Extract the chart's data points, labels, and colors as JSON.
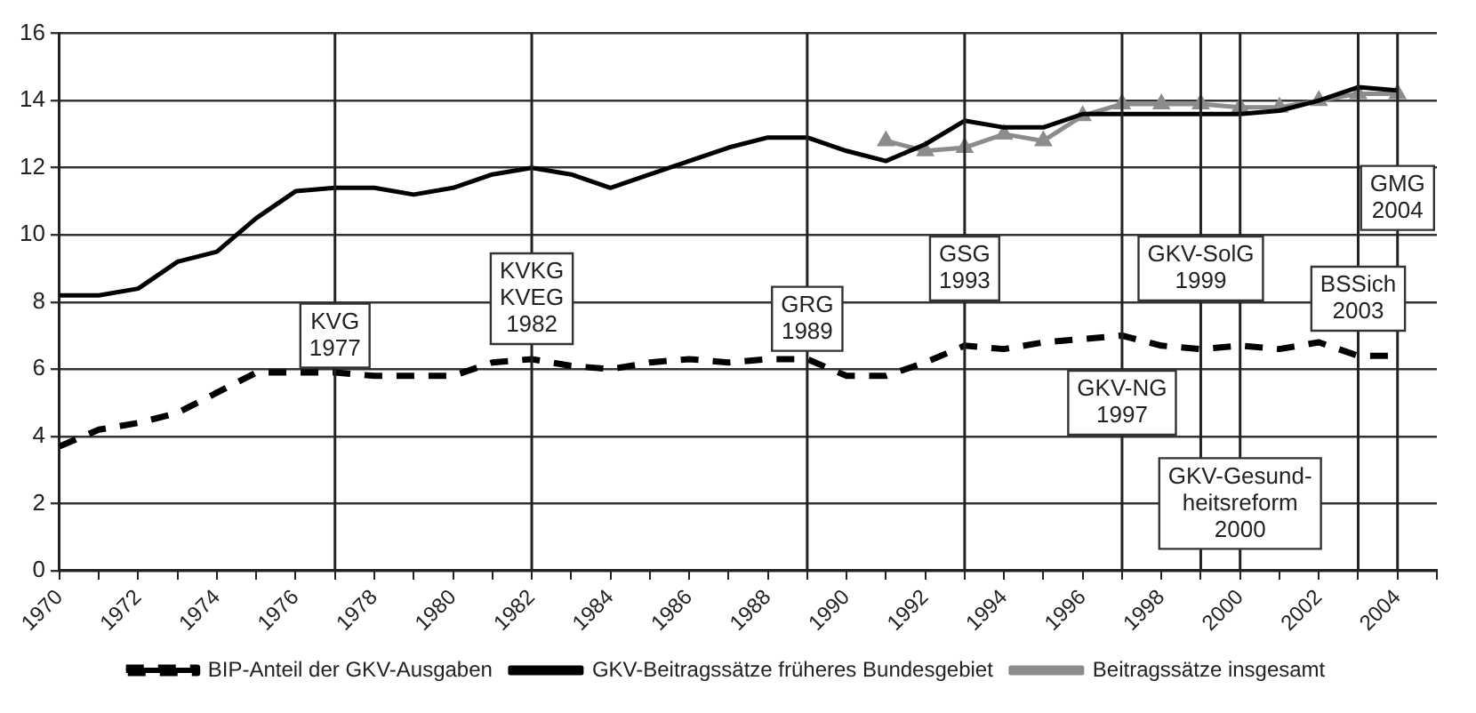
{
  "chart_data": {
    "type": "line",
    "x": [
      1970,
      1971,
      1972,
      1973,
      1974,
      1975,
      1976,
      1977,
      1978,
      1979,
      1980,
      1981,
      1982,
      1983,
      1984,
      1985,
      1986,
      1987,
      1988,
      1989,
      1990,
      1991,
      1992,
      1993,
      1994,
      1995,
      1996,
      1997,
      1998,
      1999,
      2000,
      2001,
      2002,
      2003,
      2004
    ],
    "series": [
      {
        "name": "BIP-Anteil der GKV-Ausgaben",
        "color": "#000000",
        "line_style": "dashed",
        "marker": "none",
        "values": [
          3.7,
          4.2,
          4.4,
          4.7,
          5.3,
          5.9,
          5.9,
          5.9,
          5.8,
          5.8,
          5.8,
          6.2,
          6.3,
          6.1,
          6.0,
          6.2,
          6.3,
          6.2,
          6.3,
          6.3,
          5.8,
          5.8,
          6.2,
          6.7,
          6.6,
          6.8,
          6.9,
          7.0,
          6.7,
          6.6,
          6.7,
          6.6,
          6.8,
          6.4,
          6.4
        ]
      },
      {
        "name": "GKV-Beitragssätze früheres Bundesgebiet",
        "color": "#000000",
        "line_style": "solid",
        "marker": "none",
        "values": [
          8.2,
          8.2,
          8.4,
          9.2,
          9.5,
          10.5,
          11.3,
          11.4,
          11.4,
          11.2,
          11.4,
          11.8,
          12.0,
          11.8,
          11.4,
          11.8,
          12.2,
          12.6,
          12.9,
          12.9,
          12.5,
          12.2,
          12.7,
          13.4,
          13.2,
          13.2,
          13.6,
          13.6,
          13.6,
          13.6,
          13.6,
          13.7,
          14.0,
          14.4,
          14.3
        ]
      },
      {
        "name": "Beitragssätze insgesamt",
        "color": "#8c8c8c",
        "line_style": "solid",
        "marker": "triangle",
        "values": [
          null,
          null,
          null,
          null,
          null,
          null,
          null,
          null,
          null,
          null,
          null,
          null,
          null,
          null,
          null,
          null,
          null,
          null,
          null,
          null,
          null,
          12.8,
          12.5,
          12.6,
          13.0,
          12.8,
          13.55,
          13.9,
          13.9,
          13.9,
          13.8,
          13.8,
          14.0,
          14.2,
          14.2
        ]
      }
    ],
    "xlim": [
      1970,
      2005
    ],
    "xticks": [
      1970,
      {
        "value": 1971,
        "label": null
      },
      1972,
      {
        "value": 1973,
        "label": null
      },
      1974,
      {
        "value": 1975,
        "label": null
      },
      1976,
      {
        "value": 1977,
        "label": null
      },
      1978,
      {
        "value": 1979,
        "label": null
      },
      1980,
      {
        "value": 1981,
        "label": null
      },
      1982,
      {
        "value": 1983,
        "label": null
      },
      1984,
      {
        "value": 1985,
        "label": null
      },
      1986,
      {
        "value": 1987,
        "label": null
      },
      1988,
      {
        "value": 1989,
        "label": null
      },
      1990,
      {
        "value": 1991,
        "label": null
      },
      1992,
      {
        "value": 1993,
        "label": null
      },
      1994,
      {
        "value": 1995,
        "label": null
      },
      1996,
      {
        "value": 1997,
        "label": null
      },
      1998,
      {
        "value": 1999,
        "label": null
      },
      2000,
      {
        "value": 2001,
        "label": null
      },
      2002,
      {
        "value": 2003,
        "label": null
      },
      2004,
      {
        "value": 2005,
        "label": null
      }
    ],
    "ylim": [
      0,
      16
    ],
    "yticks": [
      0,
      2,
      4,
      6,
      8,
      10,
      12,
      14,
      16
    ],
    "grid": "y",
    "legend": "bottom",
    "ref_lines": [
      {
        "axis": "x",
        "value": 1977,
        "label": "KVG\n1977"
      },
      {
        "axis": "x",
        "value": 1982,
        "label": "KVKG\nKVEG\n1982"
      },
      {
        "axis": "x",
        "value": 1989,
        "label": "GRG\n1989"
      },
      {
        "axis": "x",
        "value": 1993,
        "label": "GSG\n1993"
      },
      {
        "axis": "x",
        "value": 1997,
        "label": "GKV-NG\n1997"
      },
      {
        "axis": "x",
        "value": 1999,
        "label": "GKV-SolG\n1999"
      },
      {
        "axis": "x",
        "value": 2000,
        "label": "GKV-Gesund-\nheitsreform\n2000"
      },
      {
        "axis": "x",
        "value": 2003,
        "label": "BSSich\n2003"
      },
      {
        "axis": "x",
        "value": 2004,
        "label": "GMG\n2004"
      }
    ]
  }
}
